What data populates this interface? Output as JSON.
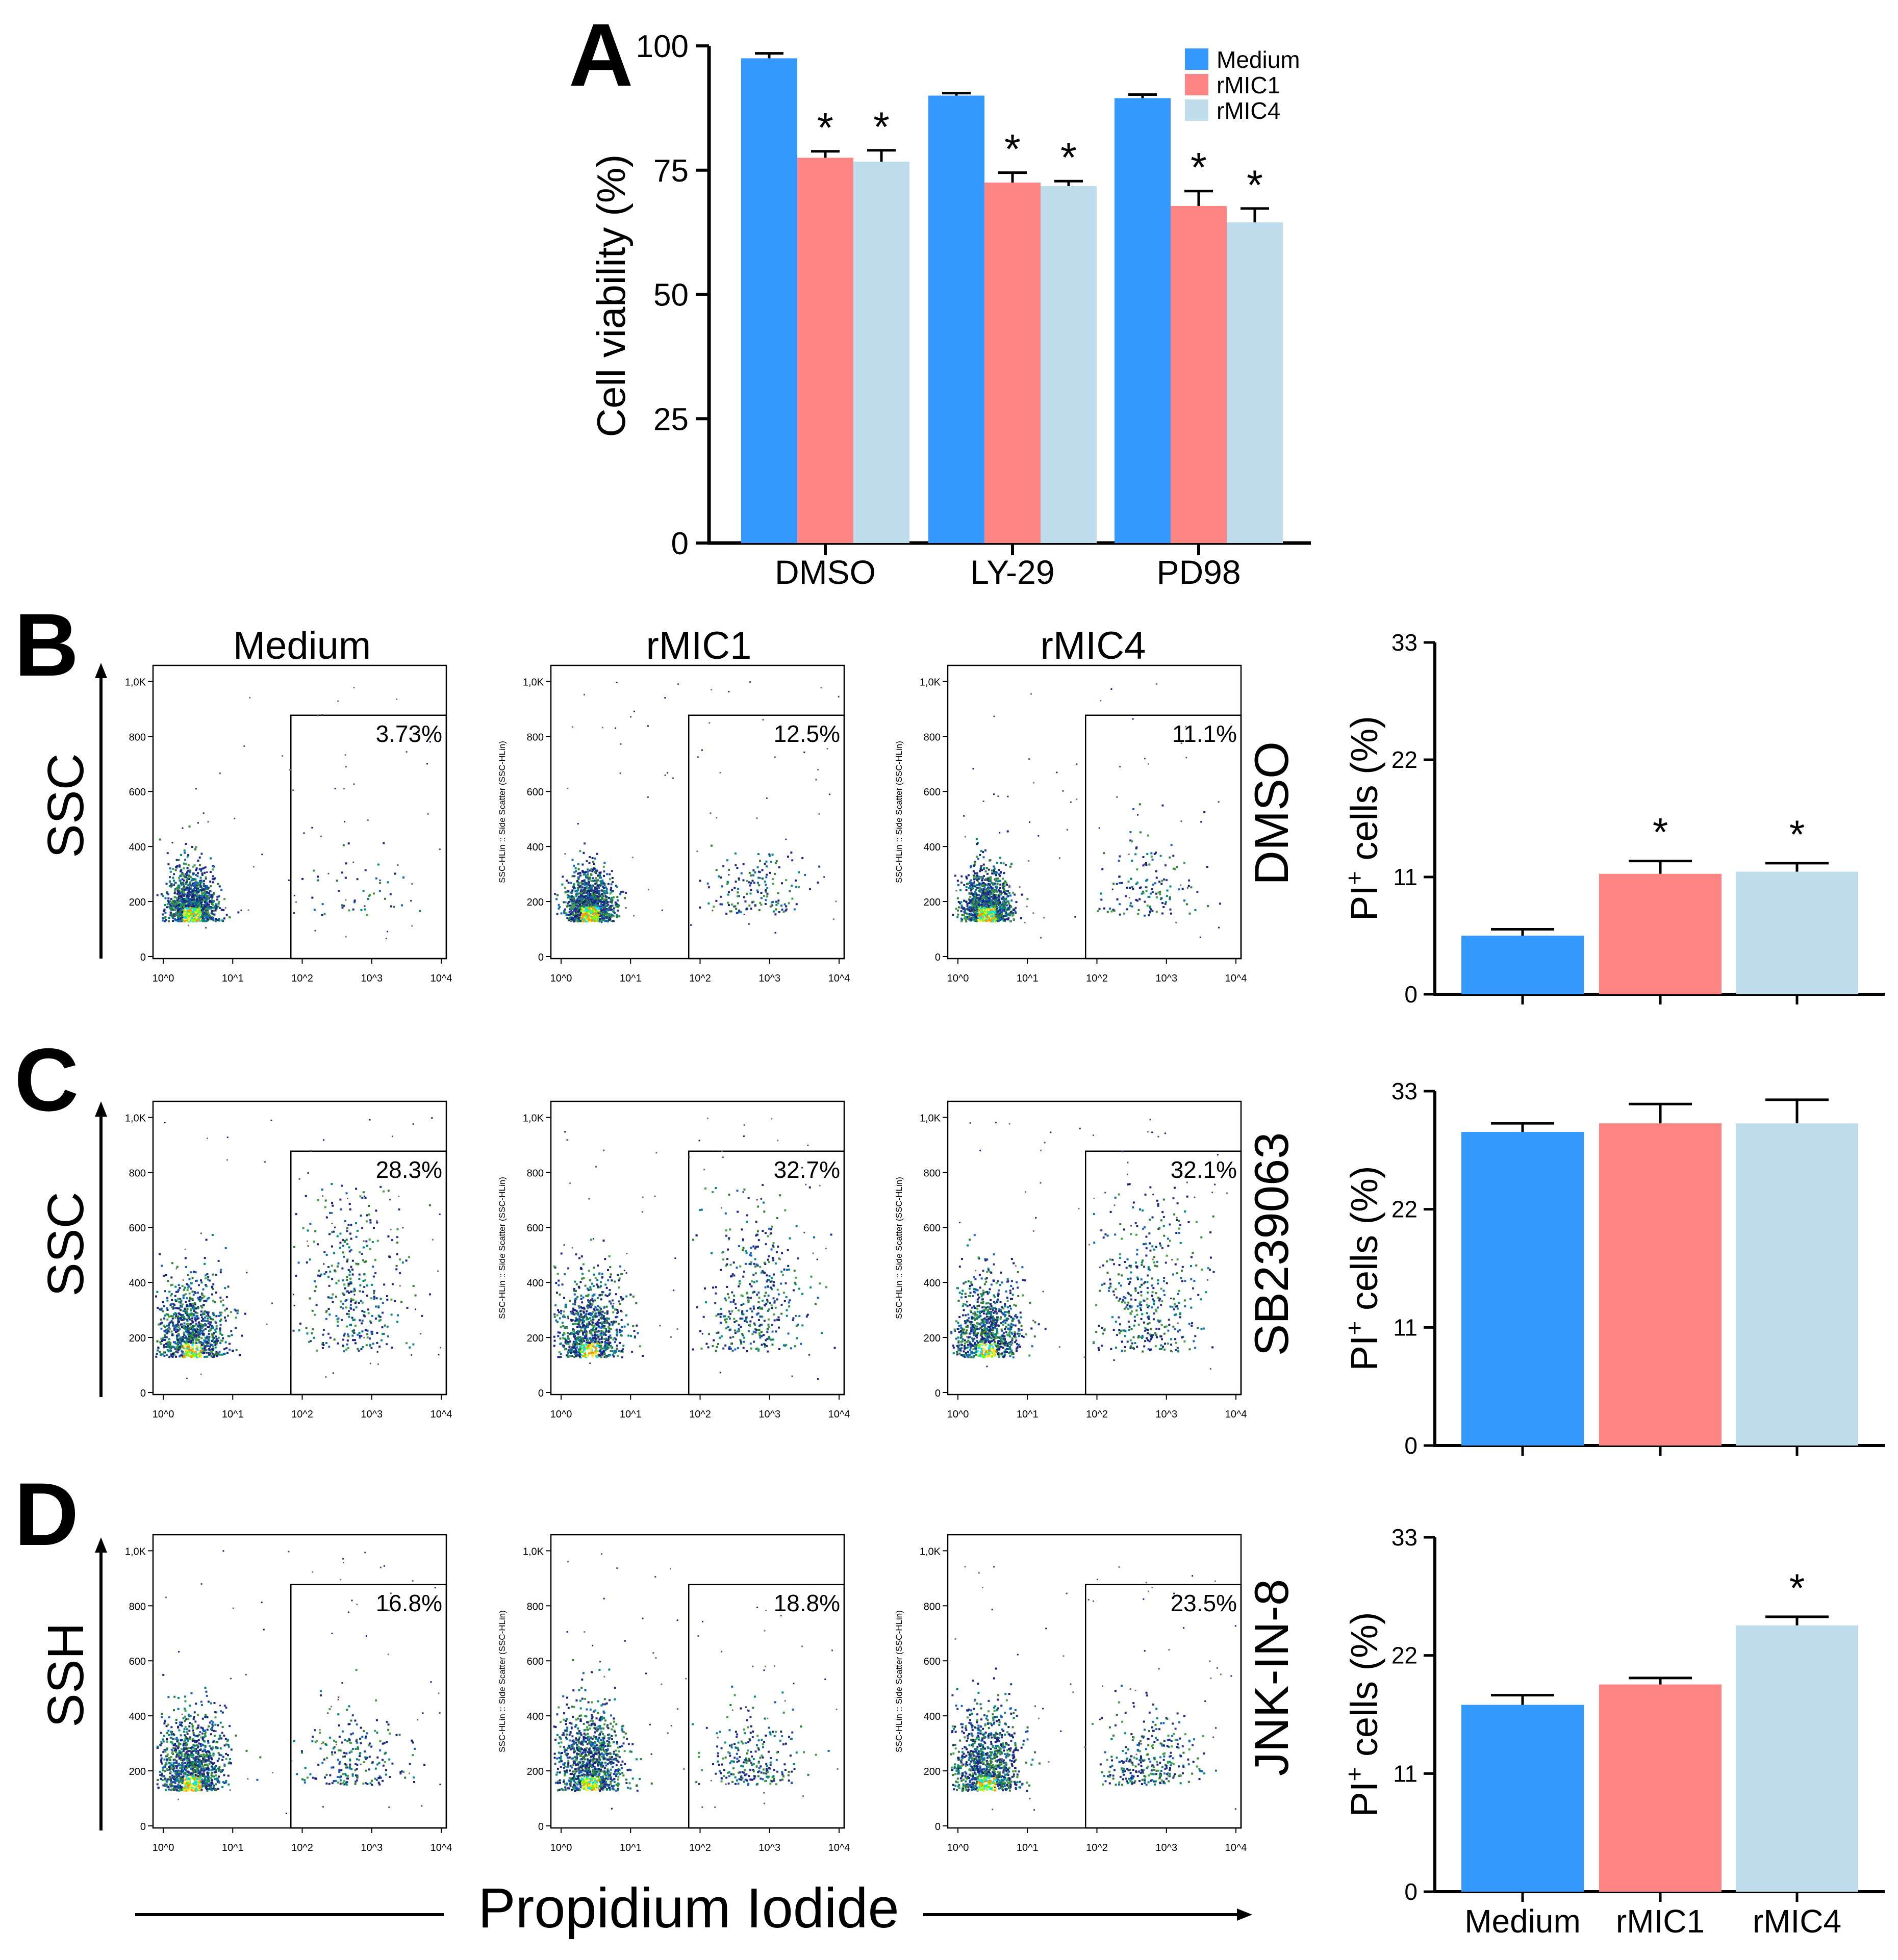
{
  "palette": {
    "medium": "#3399ff",
    "rmic1": "#ff8585",
    "rmic4": "#bedcec",
    "axis": "#000000"
  },
  "labels": {
    "panels": [
      "A",
      "B",
      "C",
      "D"
    ],
    "columns": [
      "Medium",
      "rMIC1",
      "rMIC4"
    ],
    "row_labels": [
      "SSC",
      "SSC",
      "SSH"
    ],
    "treatments": [
      "DMSO",
      "SB239063",
      "JNK-IN-8"
    ],
    "x_axis_title": "Propidium Iodide",
    "flow_y_axis_label": "SSC-HLin :: Side Scatter (SSC-HLin)"
  },
  "flow": {
    "y_ticks": [
      "0",
      "200",
      "400",
      "600",
      "800",
      "1,0K"
    ],
    "x_ticks": [
      "10^0",
      "10^1",
      "10^2",
      "10^3",
      "10^4"
    ],
    "rows": [
      {
        "treatment": "DMSO",
        "percents": [
          "3.73%",
          "12.5%",
          "11.1%"
        ]
      },
      {
        "treatment": "SB239063",
        "percents": [
          "28.3%",
          "32.7%",
          "32.1%"
        ]
      },
      {
        "treatment": "JNK-IN-8",
        "percents": [
          "16.8%",
          "18.8%",
          "23.5%"
        ]
      }
    ]
  },
  "chart_data": [
    {
      "type": "bar",
      "panel": "A",
      "title": "",
      "xlabel": "",
      "ylabel": "Cell viability (%)",
      "ylim": [
        0,
        100
      ],
      "yticks": [
        0,
        25,
        50,
        75,
        100
      ],
      "categories": [
        "DMSO",
        "LY-29",
        "PD98"
      ],
      "series": [
        {
          "name": "Medium",
          "values": [
            97.5,
            90,
            89.5
          ],
          "errors": [
            1,
            0.5,
            0.7
          ]
        },
        {
          "name": "rMIC1",
          "values": [
            77.5,
            72.5,
            67.8
          ],
          "errors": [
            1.3,
            2,
            3
          ]
        },
        {
          "name": "rMIC4",
          "values": [
            76.7,
            71.8,
            64.5
          ],
          "errors": [
            2.3,
            1,
            2.8
          ]
        }
      ],
      "significance": [
        [
          false,
          true,
          true
        ],
        [
          false,
          true,
          true
        ],
        [
          false,
          true,
          true
        ]
      ],
      "significance_mark": "*",
      "legend_position": "top-right"
    },
    {
      "type": "bar",
      "panel": "B",
      "ylabel": "PI",
      "ylabel_sup": "+",
      "ylabel_rest": " cells (%)",
      "ylim": [
        0,
        33
      ],
      "yticks": [
        0,
        11,
        22,
        33
      ],
      "categories": [
        "Medium",
        "rMIC1",
        "rMIC4"
      ],
      "values": [
        5.5,
        11.3,
        11.5
      ],
      "errors": [
        0.6,
        1.2,
        0.8
      ],
      "significance": [
        false,
        true,
        true
      ],
      "significance_mark": "*"
    },
    {
      "type": "bar",
      "panel": "C",
      "ylabel": "PI",
      "ylabel_sup": "+",
      "ylabel_rest": " cells (%)",
      "ylim": [
        0,
        33
      ],
      "yticks": [
        0,
        11,
        22,
        33
      ],
      "categories": [
        "Medium",
        "rMIC1",
        "rMIC4"
      ],
      "values": [
        29.2,
        30,
        30
      ],
      "errors": [
        0.8,
        1.8,
        2.2
      ],
      "significance": [
        false,
        false,
        false
      ],
      "significance_mark": "*"
    },
    {
      "type": "bar",
      "panel": "D",
      "ylabel": "PI",
      "ylabel_sup": "+",
      "ylabel_rest": " cells (%)",
      "ylim": [
        0,
        33
      ],
      "yticks": [
        0,
        11,
        22,
        33
      ],
      "categories": [
        "Medium",
        "rMIC1",
        "rMIC4"
      ],
      "values": [
        17.4,
        19.3,
        24.8
      ],
      "errors": [
        0.9,
        0.6,
        0.8
      ],
      "significance": [
        false,
        false,
        true
      ],
      "significance_mark": "*"
    }
  ]
}
